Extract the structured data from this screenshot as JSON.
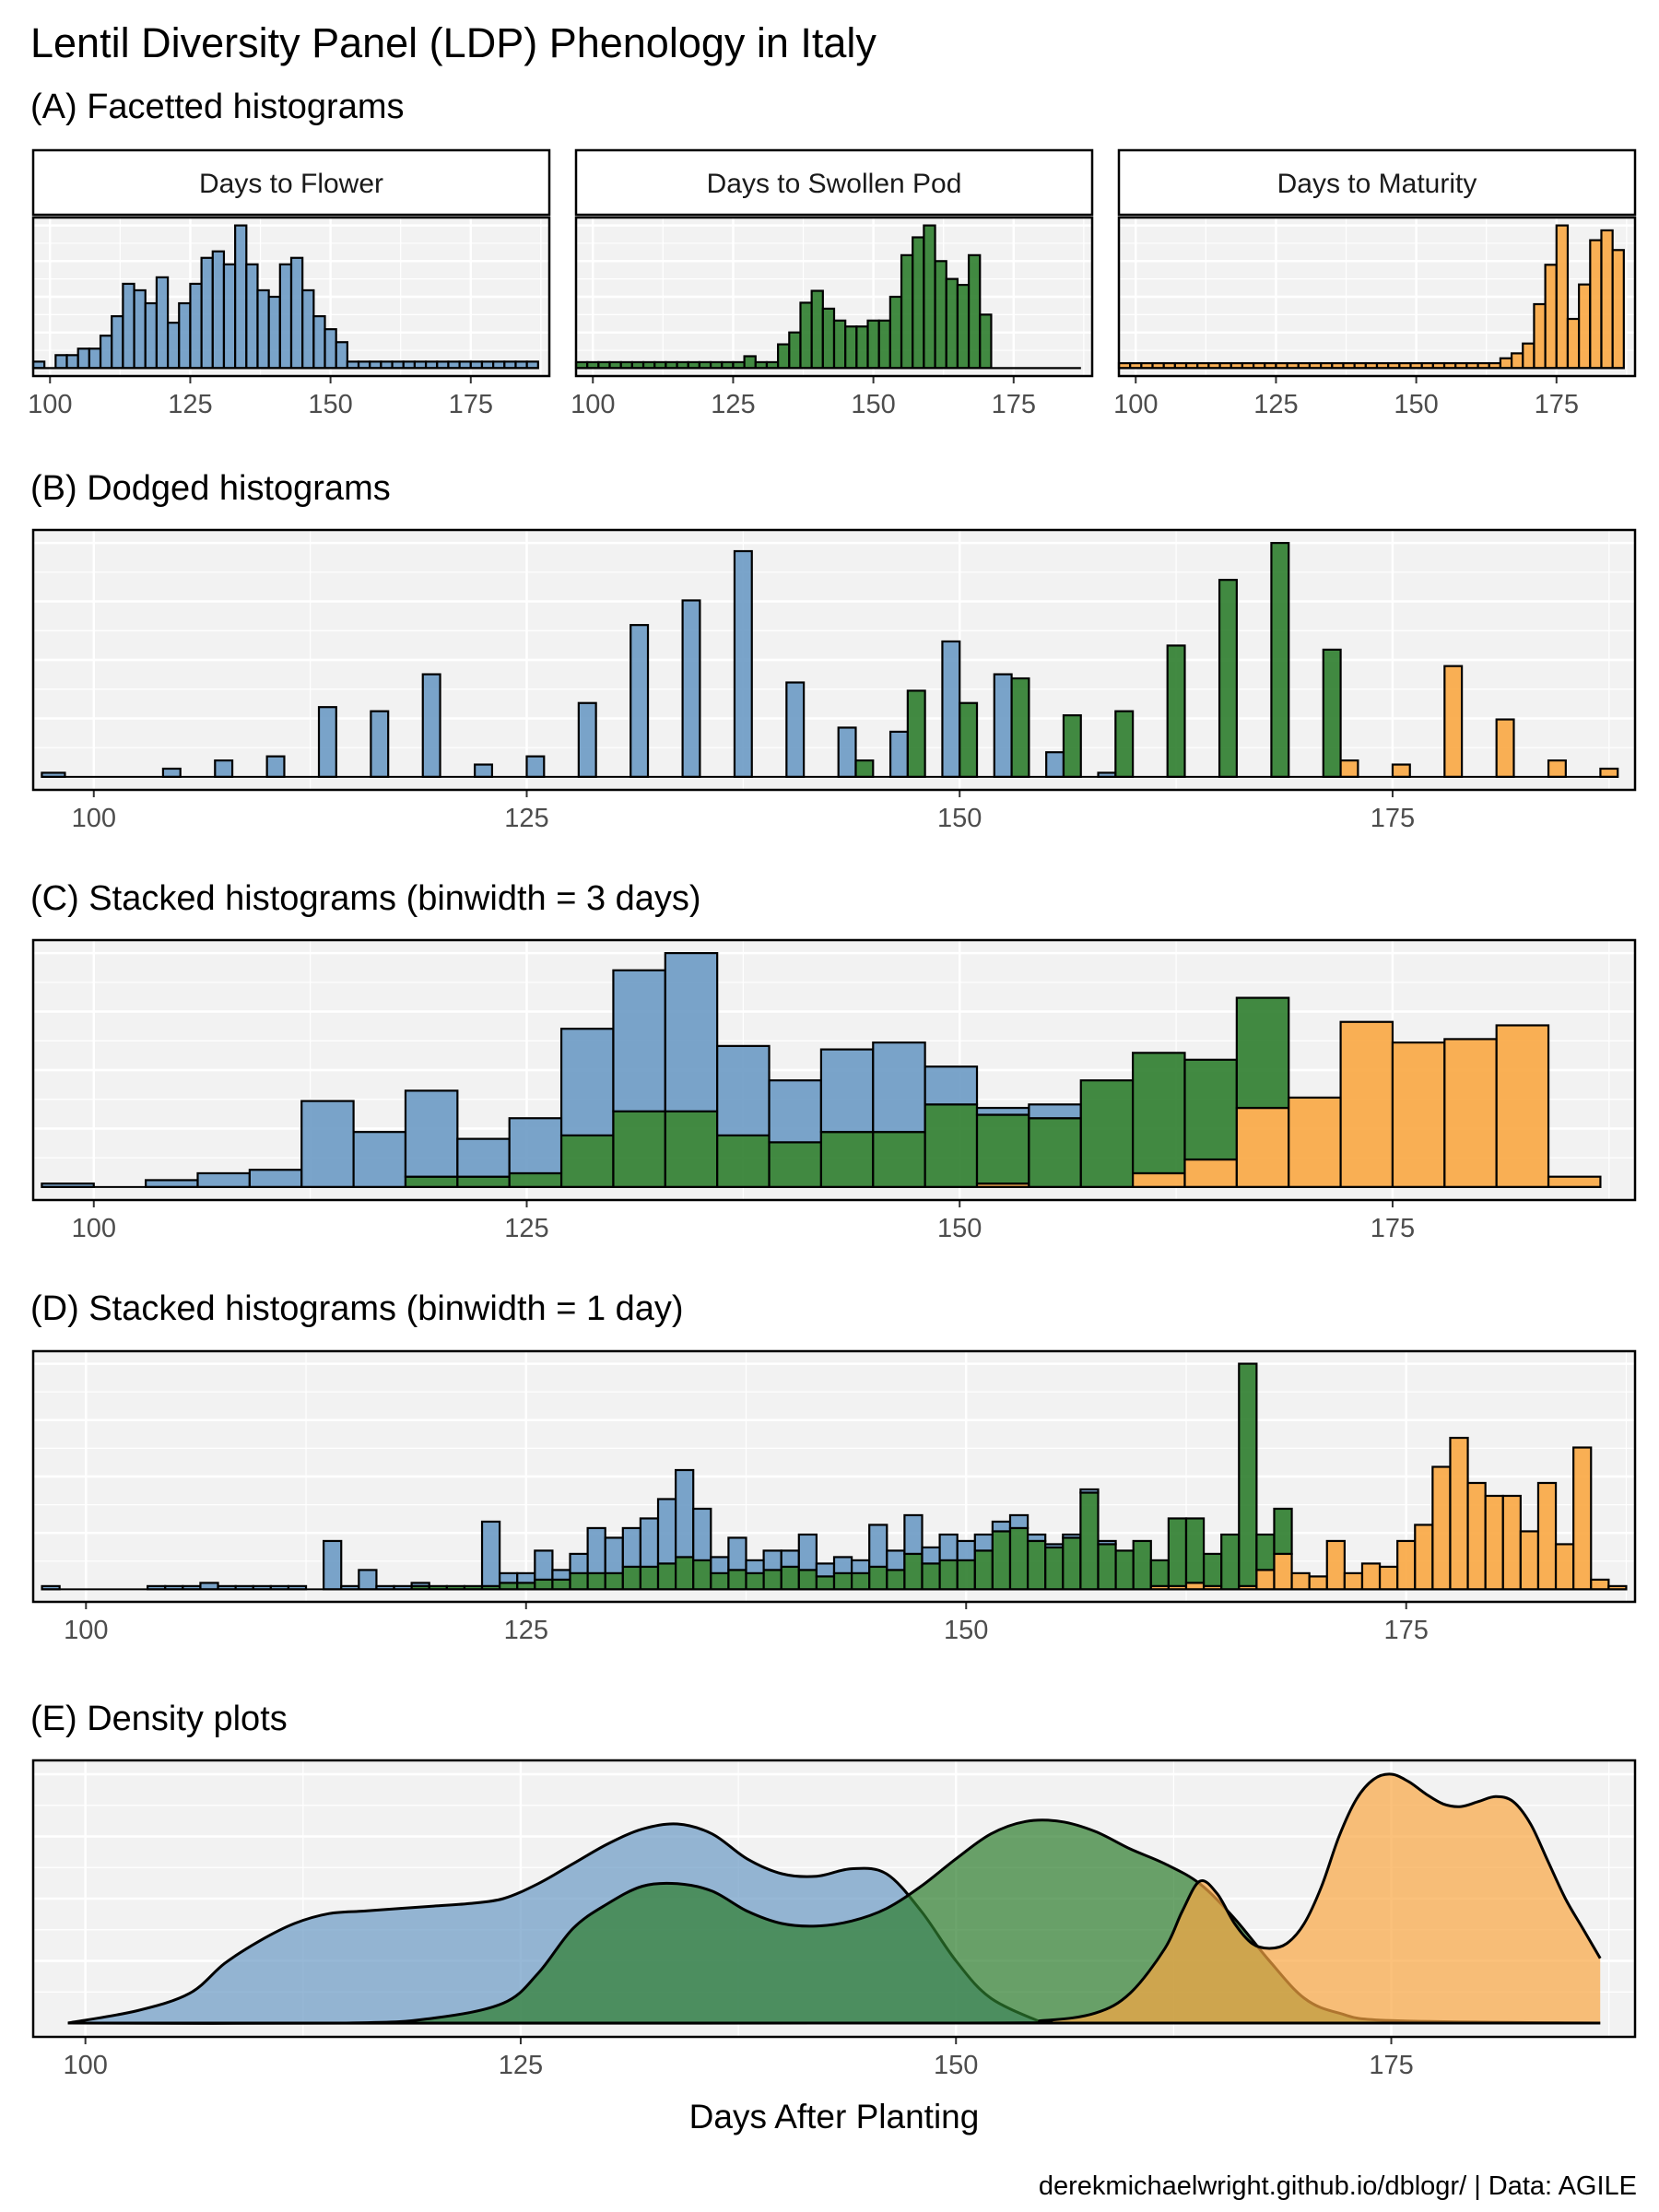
{
  "title": "Lentil Diversity Panel (LDP) Phenology in Italy",
  "caption": "derekmichaelwright.github.io/dblogr/ | Data: AGILE",
  "colors": {
    "flower": "#6b9ac4",
    "swollen_pod": "#2e7d2e",
    "maturity": "#f9a743",
    "panel_bg": "#f2f2f2",
    "grid": "#ffffff",
    "border": "#000000"
  },
  "chart_data": [
    {
      "type": "bar",
      "subtitle": "(A) Facetted histograms",
      "facets": [
        {
          "label": "Days to Flower",
          "color": "#6b9ac4",
          "x": [
            98,
            100,
            102,
            104,
            106,
            108,
            110,
            112,
            114,
            116,
            118,
            120,
            122,
            124,
            126,
            128,
            130,
            132,
            134,
            136,
            138,
            140,
            142,
            144,
            146,
            148,
            150,
            152,
            154,
            156,
            158,
            160,
            162,
            164,
            166,
            168,
            170,
            172,
            174,
            176,
            178,
            180,
            182,
            184,
            186
          ],
          "values": [
            1,
            0,
            2,
            2,
            3,
            3,
            5,
            8,
            13,
            12,
            10,
            14,
            7,
            10,
            13,
            17,
            18,
            16,
            22,
            16,
            12,
            11,
            16,
            17,
            12,
            8,
            6,
            4,
            1,
            1,
            1,
            1,
            1,
            1,
            1,
            1,
            1,
            1,
            1,
            1,
            1,
            1,
            1,
            1,
            1
          ]
        },
        {
          "label": "Days to Swollen Pod",
          "color": "#2e7d2e",
          "x": [
            98,
            100,
            102,
            104,
            106,
            108,
            110,
            112,
            114,
            116,
            118,
            120,
            122,
            124,
            126,
            128,
            130,
            132,
            134,
            136,
            138,
            140,
            142,
            144,
            146,
            148,
            150,
            152,
            154,
            156,
            158,
            160,
            162,
            164,
            166,
            168,
            170,
            172,
            174,
            176,
            178,
            180,
            182,
            184,
            186
          ],
          "values": [
            1,
            1,
            1,
            1,
            1,
            1,
            1,
            1,
            1,
            1,
            1,
            1,
            1,
            1,
            1,
            2,
            1,
            1,
            4,
            6,
            11,
            13,
            10,
            8,
            7,
            7,
            8,
            8,
            12,
            19,
            22,
            24,
            18,
            15,
            14,
            19,
            9,
            0,
            0,
            0,
            0,
            0,
            0,
            0,
            0
          ]
        },
        {
          "label": "Days to Maturity",
          "color": "#f9a743",
          "x": [
            98,
            100,
            102,
            104,
            106,
            108,
            110,
            112,
            114,
            116,
            118,
            120,
            122,
            124,
            126,
            128,
            130,
            132,
            134,
            136,
            138,
            140,
            142,
            144,
            146,
            148,
            150,
            152,
            154,
            156,
            158,
            160,
            162,
            164,
            166,
            168,
            170,
            172,
            174,
            176,
            178,
            180,
            182,
            184,
            186
          ],
          "values": [
            1,
            1,
            1,
            1,
            1,
            1,
            1,
            1,
            1,
            1,
            1,
            1,
            1,
            1,
            1,
            1,
            1,
            1,
            1,
            1,
            1,
            1,
            1,
            1,
            1,
            1,
            1,
            1,
            1,
            1,
            1,
            1,
            1,
            1,
            2,
            3,
            5,
            13,
            21,
            29,
            10,
            17,
            26,
            28,
            24
          ]
        }
      ],
      "xlim": [
        97,
        189
      ],
      "x_ticks": [
        "100",
        "125",
        "150",
        "175"
      ]
    },
    {
      "type": "bar",
      "subtitle": "(B) Dodged histograms",
      "bins": [
        97,
        101,
        104,
        107,
        110,
        113,
        116,
        119,
        122,
        125,
        128,
        131,
        134,
        137,
        140,
        143,
        146,
        149,
        152,
        155,
        158,
        161,
        164,
        167,
        170,
        173,
        176,
        179,
        182,
        185,
        188
      ],
      "flower": [
        1,
        0,
        2,
        4,
        5,
        17,
        16,
        25,
        3,
        5,
        18,
        37,
        43,
        55,
        23,
        12,
        11,
        33,
        25,
        6,
        1,
        0,
        0,
        0,
        0,
        0,
        0,
        0,
        0,
        0
      ],
      "swollen_pod": [
        0,
        0,
        0,
        0,
        0,
        0,
        0,
        0,
        0,
        0,
        0,
        0,
        0,
        0,
        0,
        4,
        21,
        18,
        24,
        15,
        16,
        32,
        48,
        57,
        31,
        0,
        0,
        0,
        0,
        0
      ],
      "maturity": [
        0,
        0,
        0,
        0,
        0,
        0,
        0,
        0,
        0,
        0,
        0,
        0,
        0,
        0,
        0,
        0,
        0,
        0,
        0,
        0,
        0,
        0,
        0,
        0,
        4,
        3,
        27,
        14,
        4,
        2
      ],
      "xlim": [
        96.5,
        189
      ],
      "x_ticks": [
        "100",
        "125",
        "150",
        "175"
      ]
    },
    {
      "type": "bar",
      "subtitle": "(C) Stacked histograms (binwidth = 3 days)",
      "bins": [
        97,
        100,
        103,
        106,
        109,
        112,
        115,
        118,
        121,
        124,
        127,
        130,
        133,
        136,
        139,
        142,
        145,
        148,
        151,
        154,
        157,
        160,
        163,
        166,
        169,
        172,
        175,
        178,
        181,
        184,
        187
      ],
      "flower": [
        1,
        0,
        2,
        4,
        5,
        25,
        16,
        25,
        11,
        16,
        31,
        41,
        46,
        26,
        18,
        24,
        26,
        11,
        2,
        4,
        0,
        0,
        0,
        0,
        0,
        0,
        0,
        0,
        0,
        0
      ],
      "swollen_pod": [
        0,
        0,
        0,
        0,
        0,
        0,
        0,
        3,
        3,
        4,
        15,
        22,
        22,
        15,
        13,
        16,
        16,
        24,
        20,
        20,
        31,
        35,
        29,
        32,
        0,
        0,
        0,
        0,
        0,
        0
      ],
      "maturity": [
        0,
        0,
        0,
        0,
        0,
        0,
        0,
        0,
        0,
        0,
        0,
        0,
        0,
        0,
        0,
        0,
        0,
        0,
        1,
        0,
        0,
        4,
        8,
        23,
        26,
        48,
        42,
        43,
        47,
        3
      ],
      "xlim": [
        96.5,
        189
      ],
      "x_ticks": [
        "100",
        "125",
        "150",
        "175"
      ]
    },
    {
      "type": "bar",
      "subtitle": "(D) Stacked histograms (binwidth = 1 day)",
      "bins_start": 98,
      "binwidth": 1,
      "flower": [
        1,
        0,
        0,
        0,
        0,
        0,
        1,
        1,
        1,
        2,
        1,
        1,
        1,
        1,
        1,
        0,
        15,
        1,
        6,
        1,
        1,
        1,
        0,
        0,
        0,
        20,
        3,
        3,
        9,
        3,
        6,
        14,
        11,
        12,
        15,
        20,
        27,
        16,
        5,
        10,
        4,
        6,
        5,
        11,
        4,
        5,
        4,
        13,
        6,
        12,
        5,
        8,
        6,
        5,
        3,
        4,
        2,
        1,
        1,
        1,
        1,
        0,
        0,
        0,
        0,
        0,
        0,
        0,
        0,
        0,
        0,
        0,
        0,
        0,
        0,
        0,
        0,
        0,
        0,
        0,
        0,
        0,
        0,
        0,
        0,
        0,
        0,
        0,
        0,
        0
      ],
      "swollen_pod": [
        0,
        0,
        0,
        0,
        0,
        0,
        0,
        0,
        0,
        0,
        0,
        0,
        0,
        0,
        0,
        0,
        0,
        0,
        0,
        0,
        0,
        1,
        1,
        1,
        1,
        1,
        2,
        2,
        3,
        3,
        5,
        5,
        5,
        7,
        7,
        8,
        10,
        9,
        5,
        6,
        5,
        6,
        7,
        6,
        4,
        5,
        5,
        7,
        6,
        11,
        8,
        9,
        9,
        12,
        18,
        19,
        15,
        13,
        16,
        30,
        14,
        12,
        15,
        8,
        21,
        20,
        10,
        17,
        69,
        11,
        14,
        0,
        0,
        0,
        0,
        0,
        0,
        0,
        0,
        0,
        0,
        0,
        0,
        0,
        0,
        0,
        0,
        0,
        0,
        0
      ],
      "maturity": [
        0,
        0,
        0,
        0,
        0,
        0,
        0,
        0,
        0,
        0,
        0,
        0,
        0,
        0,
        0,
        0,
        0,
        0,
        0,
        0,
        0,
        0,
        0,
        0,
        0,
        0,
        0,
        0,
        0,
        0,
        0,
        0,
        0,
        0,
        0,
        0,
        0,
        0,
        0,
        0,
        0,
        0,
        0,
        0,
        0,
        0,
        0,
        0,
        0,
        0,
        0,
        0,
        0,
        0,
        0,
        0,
        0,
        0,
        0,
        0,
        0,
        0,
        0,
        1,
        1,
        2,
        1,
        0,
        1,
        6,
        11,
        5,
        4,
        15,
        5,
        8,
        7,
        15,
        20,
        38,
        47,
        33,
        29,
        29,
        18,
        33,
        14,
        44,
        3,
        1
      ],
      "xlim": [
        97,
        188
      ],
      "x_ticks": [
        "100",
        "125",
        "150",
        "175"
      ]
    },
    {
      "type": "area",
      "subtitle": "(E) Density plots",
      "series": [
        {
          "name": "Days to Flower",
          "color": "#6b9ac4",
          "x": [
            99,
            103,
            106,
            108,
            110,
            112,
            114,
            116,
            118,
            120,
            122,
            124,
            126,
            128,
            130,
            132,
            134,
            136,
            138,
            140,
            142,
            144,
            146,
            148,
            150,
            152,
            155
          ],
          "y": [
            0.0,
            0.05,
            0.12,
            0.24,
            0.33,
            0.4,
            0.44,
            0.45,
            0.46,
            0.47,
            0.48,
            0.5,
            0.56,
            0.64,
            0.72,
            0.78,
            0.8,
            0.76,
            0.66,
            0.6,
            0.59,
            0.62,
            0.6,
            0.45,
            0.25,
            0.1,
            0.0
          ]
        },
        {
          "name": "Days to Swollen Pod",
          "color": "#2e7d2e",
          "x": [
            99,
            115,
            120,
            124,
            126,
            128,
            130,
            132,
            134,
            136,
            138,
            140,
            142,
            144,
            146,
            148,
            150,
            152,
            154,
            156,
            158,
            160,
            162,
            164,
            166,
            168,
            170,
            172,
            175,
            187
          ],
          "y": [
            0.0,
            0.0,
            0.02,
            0.08,
            0.2,
            0.38,
            0.48,
            0.55,
            0.56,
            0.53,
            0.45,
            0.4,
            0.39,
            0.41,
            0.46,
            0.55,
            0.66,
            0.76,
            0.81,
            0.81,
            0.77,
            0.7,
            0.64,
            0.56,
            0.42,
            0.25,
            0.1,
            0.04,
            0.01,
            0.0
          ]
        },
        {
          "name": "Days to Maturity",
          "color": "#f9a743",
          "x": [
            99,
            150,
            155,
            158,
            160,
            162,
            163,
            164,
            165,
            166,
            167,
            168,
            169,
            170,
            171,
            172,
            173,
            174,
            175,
            176,
            177,
            178,
            179,
            180,
            181,
            182,
            183,
            184,
            185,
            186,
            187
          ],
          "y": [
            0.0,
            0.0,
            0.01,
            0.04,
            0.12,
            0.3,
            0.45,
            0.57,
            0.52,
            0.4,
            0.32,
            0.3,
            0.32,
            0.4,
            0.55,
            0.75,
            0.9,
            0.98,
            1.0,
            0.97,
            0.92,
            0.88,
            0.87,
            0.89,
            0.91,
            0.89,
            0.8,
            0.65,
            0.5,
            0.38,
            0.26
          ]
        }
      ],
      "xlim": [
        97,
        189
      ],
      "x_ticks": [
        "100",
        "125",
        "150",
        "175"
      ],
      "xlabel": "Days After Planting"
    }
  ]
}
